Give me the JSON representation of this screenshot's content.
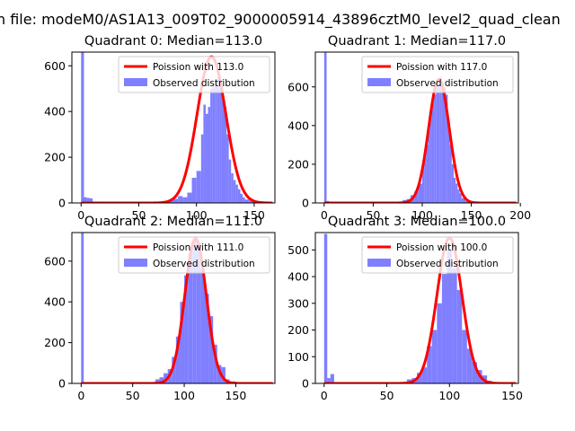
{
  "figure": {
    "suptitle": "n file: modeM0/AS1A13_009T02_9000005914_43896cztM0_level2_quad_clean"
  },
  "chart_data": [
    {
      "type": "bar",
      "title": "Quadrant 0: Median=113.0",
      "xlim": [
        -8,
        168
      ],
      "ylim": [
        0,
        660
      ],
      "xticks": [
        0,
        50,
        100,
        150
      ],
      "yticks": [
        0,
        200,
        400,
        600
      ],
      "bin_width": 4,
      "legend": {
        "placement": "top-right",
        "line_label": "Poission with 113.0",
        "bar_label": "Observed distribution"
      },
      "poisson_mean": 113.0,
      "poisson_peak": 640,
      "poisson_sigma": 12.5,
      "bins": [
        [
          0,
          2.5,
          660
        ],
        [
          2.5,
          5,
          25
        ],
        [
          5,
          7.5,
          22
        ],
        [
          7.5,
          10,
          20
        ],
        [
          10,
          20,
          6
        ],
        [
          20,
          30,
          5
        ],
        [
          30,
          40,
          5
        ],
        [
          40,
          50,
          5
        ],
        [
          50,
          60,
          5
        ],
        [
          60,
          70,
          5
        ],
        [
          70,
          76,
          8
        ],
        [
          76,
          80,
          12
        ],
        [
          80,
          84,
          18
        ],
        [
          84,
          88,
          30
        ],
        [
          88,
          92,
          25
        ],
        [
          92,
          96,
          45
        ],
        [
          96,
          100,
          110
        ],
        [
          100,
          104,
          140
        ],
        [
          104,
          106,
          300
        ],
        [
          106,
          108,
          430
        ],
        [
          108,
          110,
          390
        ],
        [
          110,
          112,
          420
        ],
        [
          112,
          114,
          500
        ],
        [
          114,
          116,
          510
        ],
        [
          116,
          118,
          530
        ],
        [
          118,
          120,
          550
        ],
        [
          120,
          122,
          500
        ],
        [
          122,
          124,
          470
        ],
        [
          124,
          126,
          420
        ],
        [
          126,
          128,
          300
        ],
        [
          128,
          130,
          190
        ],
        [
          130,
          132,
          130
        ],
        [
          132,
          134,
          100
        ],
        [
          134,
          136,
          80
        ],
        [
          136,
          138,
          60
        ],
        [
          138,
          140,
          40
        ],
        [
          140,
          142,
          25
        ],
        [
          142,
          146,
          15
        ],
        [
          146,
          150,
          10
        ],
        [
          150,
          160,
          5
        ],
        [
          160,
          164,
          3
        ]
      ]
    },
    {
      "type": "bar",
      "title": "Quadrant 1: Median=117.0",
      "xlim": [
        -9,
        198
      ],
      "ylim": [
        0,
        780
      ],
      "xticks": [
        0,
        50,
        100,
        150,
        200
      ],
      "yticks": [
        0,
        200,
        400,
        600
      ],
      "bin_width": 4,
      "legend": {
        "placement": "top-right",
        "line_label": "Poission with 117.0",
        "bar_label": "Observed distribution"
      },
      "poisson_mean": 117.0,
      "poisson_peak": 640,
      "poisson_sigma": 10.5,
      "bins": [
        [
          0,
          2.5,
          780
        ],
        [
          2.5,
          5,
          10
        ],
        [
          5,
          10,
          5
        ],
        [
          10,
          40,
          2
        ],
        [
          40,
          60,
          2
        ],
        [
          60,
          80,
          5
        ],
        [
          80,
          84,
          15
        ],
        [
          84,
          88,
          20
        ],
        [
          88,
          92,
          40
        ],
        [
          92,
          96,
          60
        ],
        [
          96,
          100,
          100
        ],
        [
          100,
          102,
          180
        ],
        [
          102,
          104,
          240
        ],
        [
          104,
          106,
          300
        ],
        [
          106,
          108,
          400
        ],
        [
          108,
          110,
          470
        ],
        [
          110,
          112,
          520
        ],
        [
          112,
          114,
          560
        ],
        [
          114,
          116,
          620
        ],
        [
          116,
          118,
          600
        ],
        [
          118,
          120,
          650
        ],
        [
          120,
          122,
          620
        ],
        [
          122,
          124,
          600
        ],
        [
          124,
          126,
          560
        ],
        [
          126,
          128,
          430
        ],
        [
          128,
          130,
          300
        ],
        [
          130,
          132,
          200
        ],
        [
          132,
          134,
          130
        ],
        [
          134,
          136,
          100
        ],
        [
          136,
          138,
          70
        ],
        [
          138,
          140,
          50
        ],
        [
          140,
          144,
          25
        ],
        [
          144,
          150,
          10
        ],
        [
          150,
          160,
          5
        ],
        [
          160,
          180,
          3
        ],
        [
          180,
          190,
          2
        ]
      ]
    },
    {
      "type": "bar",
      "title": "Quadrant 2: Median=111.0",
      "xlim": [
        -9,
        188
      ],
      "ylim": [
        0,
        740
      ],
      "xticks": [
        0,
        50,
        100,
        150
      ],
      "yticks": [
        0,
        200,
        400,
        600
      ],
      "bin_width": 4,
      "legend": {
        "placement": "top-right",
        "line_label": "Poission with 111.0",
        "bar_label": "Observed distribution"
      },
      "poisson_mean": 111.0,
      "poisson_peak": 710,
      "poisson_sigma": 10.5,
      "bins": [
        [
          0,
          2.5,
          740
        ],
        [
          2.5,
          60,
          0
        ],
        [
          60,
          72,
          5
        ],
        [
          72,
          76,
          20
        ],
        [
          76,
          80,
          30
        ],
        [
          80,
          84,
          50
        ],
        [
          84,
          88,
          70
        ],
        [
          88,
          92,
          130
        ],
        [
          92,
          96,
          230
        ],
        [
          96,
          100,
          400
        ],
        [
          100,
          104,
          530
        ],
        [
          104,
          108,
          640
        ],
        [
          108,
          112,
          700
        ],
        [
          112,
          116,
          690
        ],
        [
          116,
          120,
          560
        ],
        [
          120,
          124,
          440
        ],
        [
          124,
          128,
          330
        ],
        [
          128,
          132,
          190
        ],
        [
          132,
          136,
          90
        ],
        [
          136,
          140,
          80
        ],
        [
          140,
          144,
          20
        ],
        [
          144,
          150,
          10
        ],
        [
          150,
          160,
          5
        ],
        [
          160,
          180,
          3
        ]
      ]
    },
    {
      "type": "bar",
      "title": "Quadrant 3: Median=100.0",
      "xlim": [
        -7,
        155
      ],
      "ylim": [
        0,
        565
      ],
      "xticks": [
        0,
        50,
        100,
        150
      ],
      "yticks": [
        0,
        100,
        200,
        300,
        400,
        500
      ],
      "bin_width": 4,
      "legend": {
        "placement": "top-right",
        "line_label": "Poission with 100.0",
        "bar_label": "Observed distribution"
      },
      "poisson_mean": 100.0,
      "poisson_peak": 545,
      "poisson_sigma": 10.0,
      "bins": [
        [
          0,
          2.5,
          560
        ],
        [
          2.5,
          5,
          20
        ],
        [
          5,
          8,
          35
        ],
        [
          8,
          60,
          2
        ],
        [
          60,
          66,
          5
        ],
        [
          66,
          70,
          15
        ],
        [
          70,
          74,
          20
        ],
        [
          74,
          78,
          40
        ],
        [
          78,
          82,
          60
        ],
        [
          82,
          86,
          140
        ],
        [
          86,
          90,
          200
        ],
        [
          90,
          94,
          300
        ],
        [
          94,
          98,
          410
        ],
        [
          98,
          102,
          500
        ],
        [
          102,
          106,
          430
        ],
        [
          106,
          110,
          350
        ],
        [
          110,
          114,
          200
        ],
        [
          114,
          118,
          130
        ],
        [
          118,
          122,
          80
        ],
        [
          122,
          126,
          50
        ],
        [
          126,
          130,
          30
        ],
        [
          130,
          134,
          10
        ],
        [
          134,
          140,
          5
        ],
        [
          140,
          150,
          2
        ]
      ]
    }
  ]
}
